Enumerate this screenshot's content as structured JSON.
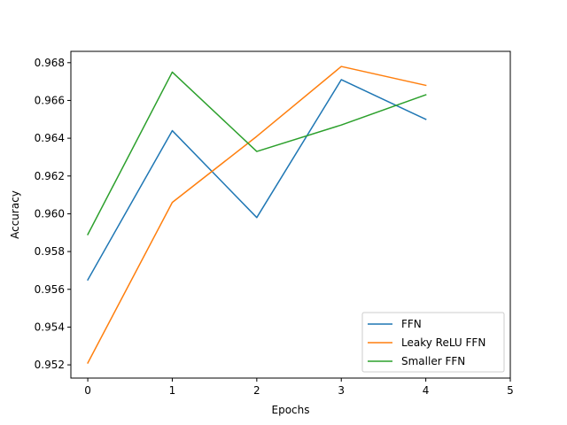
{
  "chart_data": {
    "type": "line",
    "xlabel": "Epochs",
    "ylabel": "Accuracy",
    "xlim": [
      -0.2,
      5.0
    ],
    "ylim": [
      0.9513,
      0.9686
    ],
    "xticks": [
      0,
      1,
      2,
      3,
      4,
      5
    ],
    "xtick_labels": [
      "0",
      "1",
      "2",
      "3",
      "4",
      "5"
    ],
    "yticks": [
      0.952,
      0.954,
      0.956,
      0.958,
      0.96,
      0.962,
      0.964,
      0.966,
      0.968
    ],
    "ytick_labels": [
      "0.952",
      "0.954",
      "0.956",
      "0.958",
      "0.960",
      "0.962",
      "0.964",
      "0.966",
      "0.968"
    ],
    "grid": false,
    "legend_position": "lower-right",
    "x": [
      0,
      1,
      2,
      3,
      4
    ],
    "series": [
      {
        "name": "FFN",
        "color": "#1f77b4",
        "values": [
          0.9565,
          0.9644,
          0.9598,
          0.9671,
          0.965
        ]
      },
      {
        "name": "Leaky ReLU FFN",
        "color": "#ff7f0e",
        "values": [
          0.9521,
          0.9606,
          0.9641,
          0.9678,
          0.9668
        ]
      },
      {
        "name": "Smaller FFN",
        "color": "#2ca02c",
        "values": [
          0.9589,
          0.9675,
          0.9633,
          0.9647,
          0.9663
        ]
      }
    ]
  }
}
